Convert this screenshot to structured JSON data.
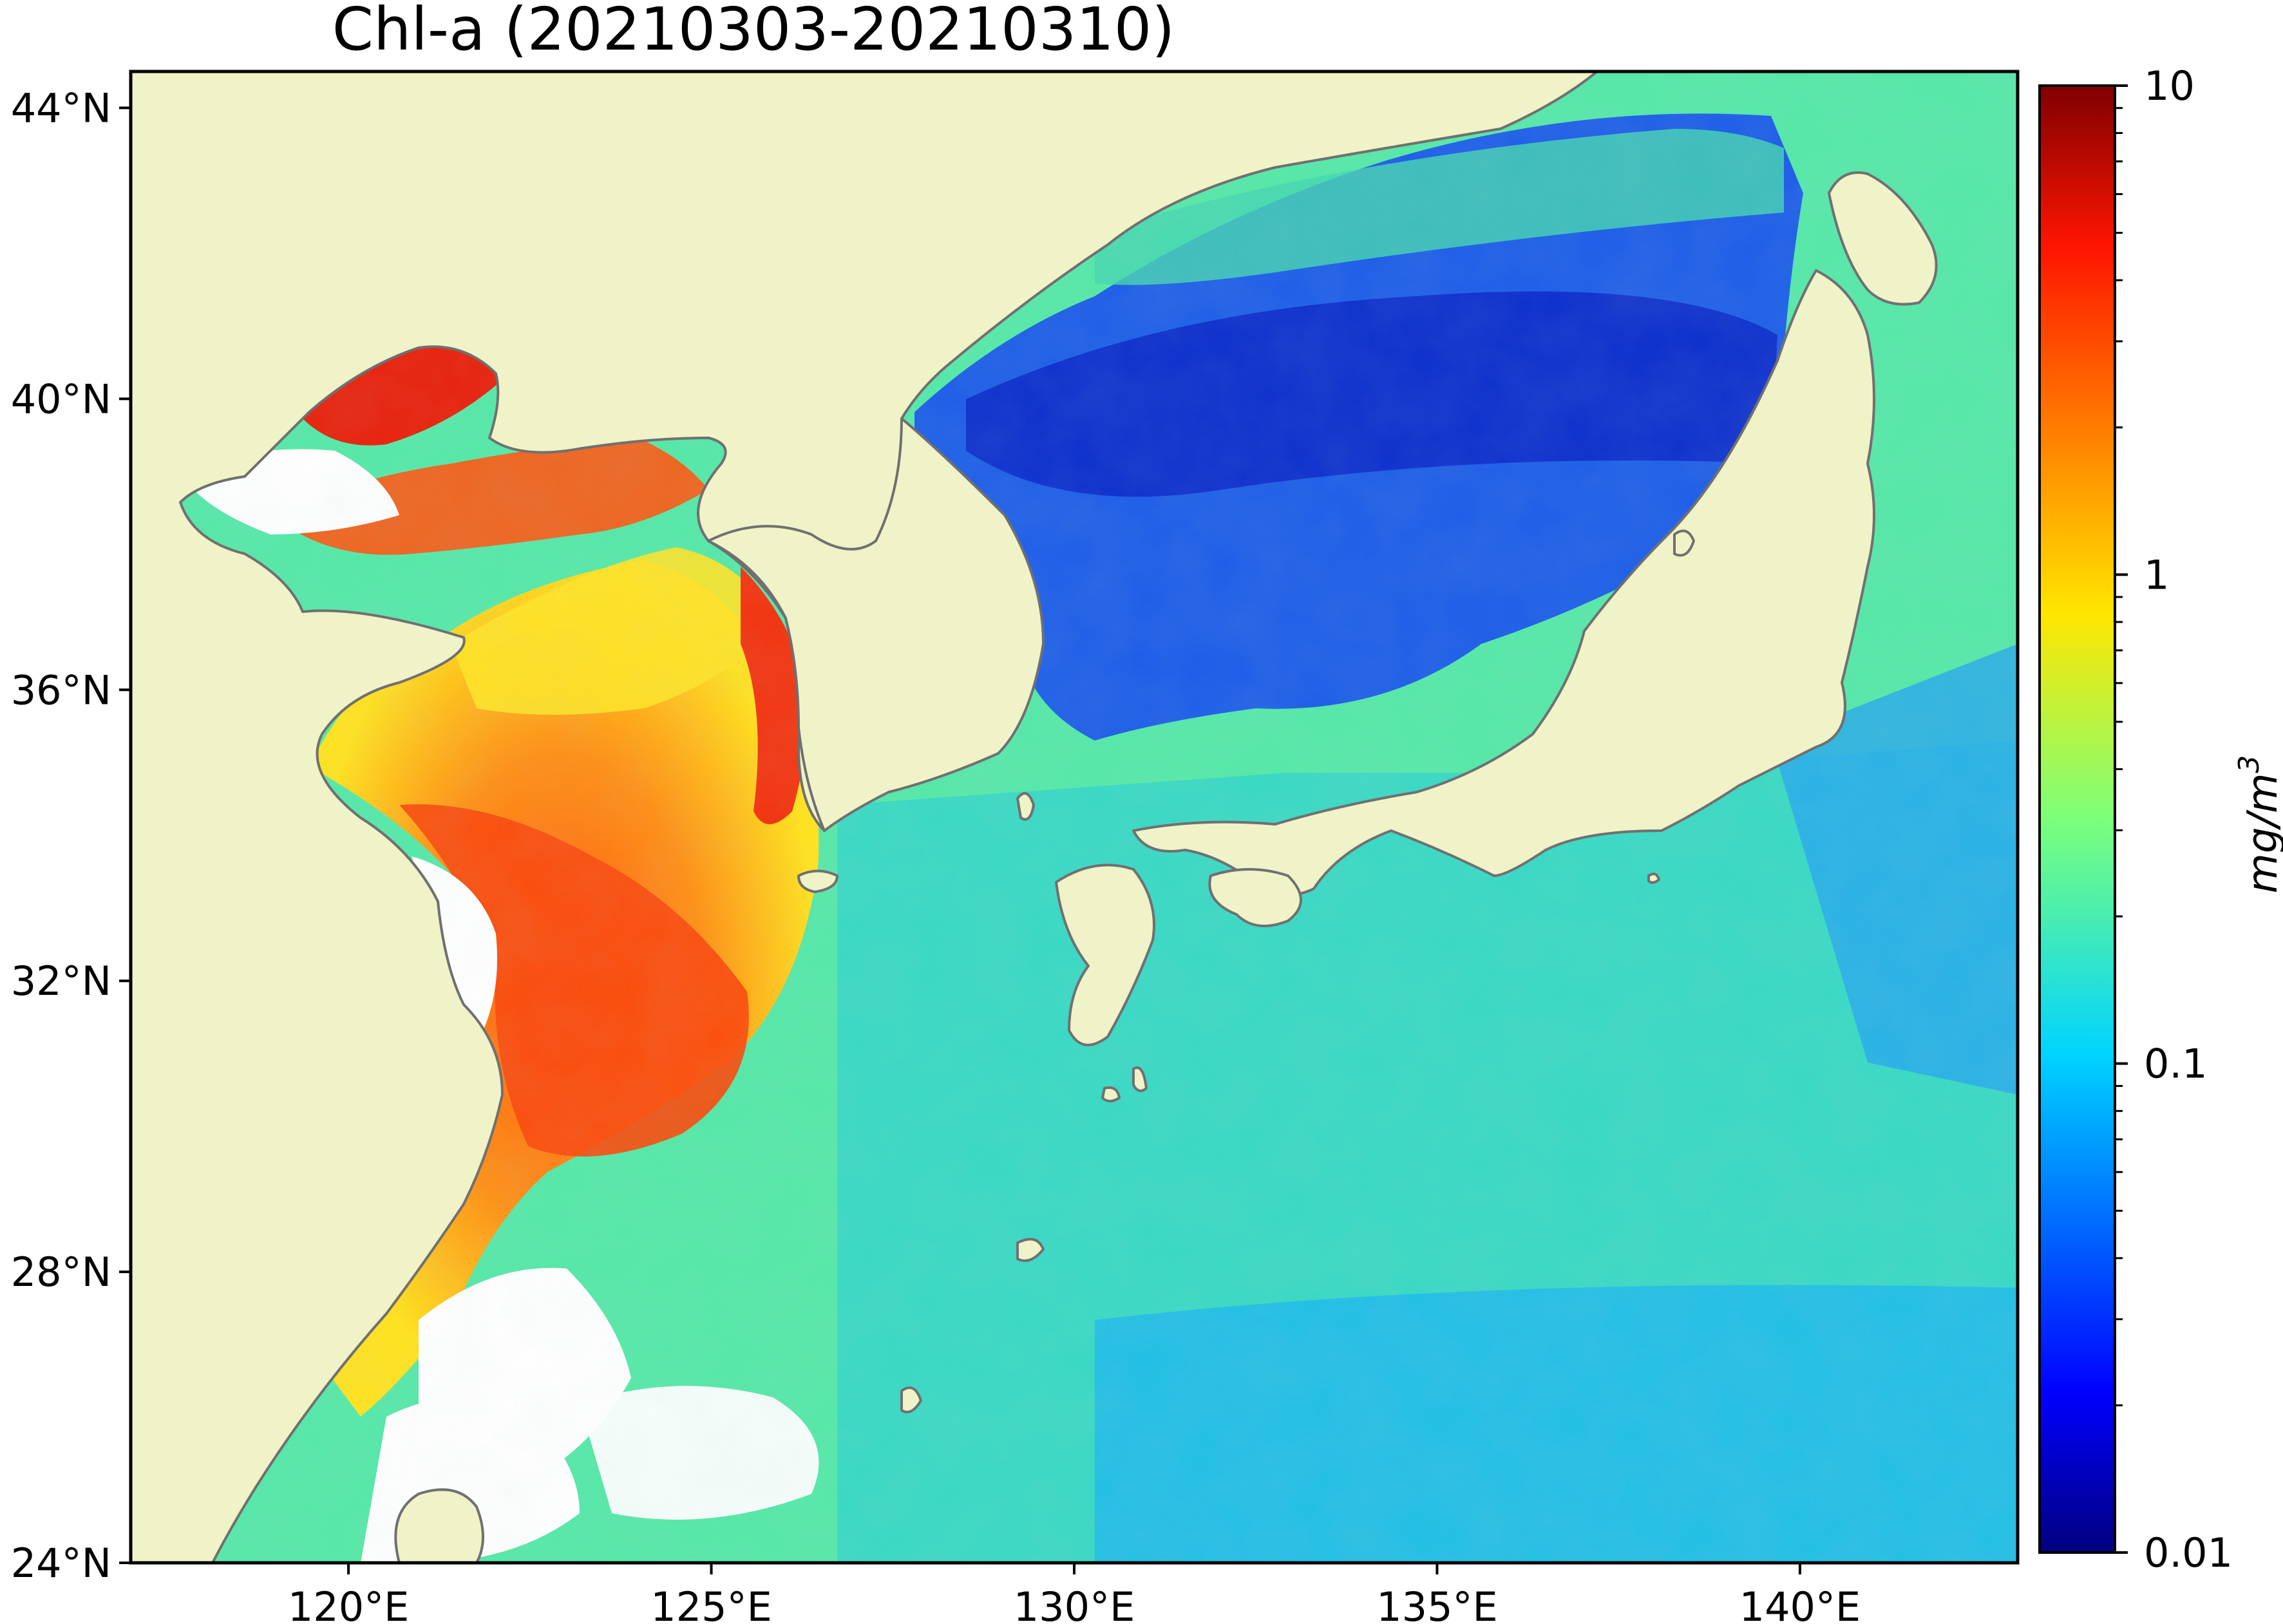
{
  "title": "Chl-a (20210303-20210310)",
  "map": {
    "lon_range": [
      117,
      143
    ],
    "lat_range": [
      24,
      44.5
    ],
    "lon_ticks": [
      {
        "value": 120,
        "label": "120°E"
      },
      {
        "value": 125,
        "label": "125°E"
      },
      {
        "value": 130,
        "label": "130°E"
      },
      {
        "value": 135,
        "label": "135°E"
      },
      {
        "value": 140,
        "label": "140°E"
      }
    ],
    "lat_ticks": [
      {
        "value": 24,
        "label": "24°N"
      },
      {
        "value": 28,
        "label": "28°N"
      },
      {
        "value": 32,
        "label": "32°N"
      },
      {
        "value": 36,
        "label": "36°N"
      },
      {
        "value": 40,
        "label": "40°N"
      },
      {
        "value": 44,
        "label": "44°N"
      }
    ],
    "land_color": "#f0f2c8",
    "coast_color": "#707070",
    "nodata_color": "#ffffff"
  },
  "colorbar": {
    "scale": "log",
    "range": [
      0.01,
      10
    ],
    "ticks": [
      {
        "value": 10,
        "label": "10"
      },
      {
        "value": 1,
        "label": "1"
      },
      {
        "value": 0.1,
        "label": "0.1"
      },
      {
        "value": 0.01,
        "label": "0.01"
      }
    ],
    "unit_label": "mg/m",
    "unit_superscript": "3",
    "colormap": "jet"
  }
}
